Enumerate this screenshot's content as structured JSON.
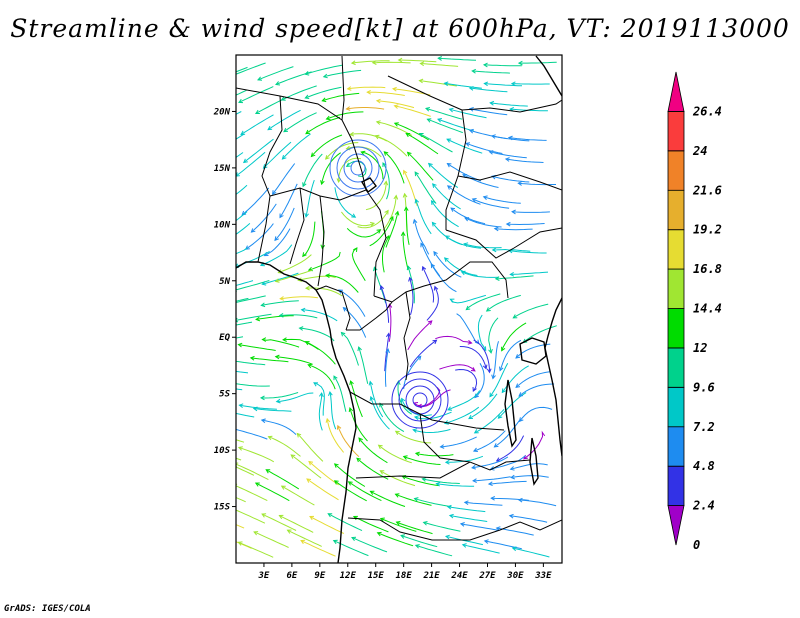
{
  "title": "Streamline & wind speed[kt] at 600hPa, VT: 2019113000",
  "credit": "GrADS: IGES/COLA",
  "map": {
    "lon_range": [
      0,
      35
    ],
    "lat_range": [
      -20,
      25
    ],
    "lat_ticks": [
      {
        "label": "20N",
        "value": 20
      },
      {
        "label": "15N",
        "value": 15
      },
      {
        "label": "10N",
        "value": 10
      },
      {
        "label": "5N",
        "value": 5
      },
      {
        "label": "EQ",
        "value": 0
      },
      {
        "label": "5S",
        "value": -5
      },
      {
        "label": "10S",
        "value": -10
      },
      {
        "label": "15S",
        "value": -15
      }
    ],
    "lon_ticks": [
      {
        "label": "3E",
        "value": 3
      },
      {
        "label": "6E",
        "value": 6
      },
      {
        "label": "9E",
        "value": 9
      },
      {
        "label": "12E",
        "value": 12
      },
      {
        "label": "15E",
        "value": 15
      },
      {
        "label": "18E",
        "value": 18
      },
      {
        "label": "21E",
        "value": 21
      },
      {
        "label": "24E",
        "value": 24
      },
      {
        "label": "27E",
        "value": 27
      },
      {
        "label": "30E",
        "value": 30
      },
      {
        "label": "33E",
        "value": 33
      }
    ]
  },
  "colorbar": {
    "labels": [
      "26.4",
      "24",
      "21.6",
      "19.2",
      "16.8",
      "14.4",
      "12",
      "9.6",
      "7.2",
      "4.8",
      "2.4",
      "0"
    ],
    "colors": [
      "#a000c8",
      "#3232e6",
      "#1e8cf0",
      "#00c8c8",
      "#00d28c",
      "#00dc00",
      "#a0e632",
      "#e6dc32",
      "#e6af2d",
      "#f08228",
      "#fa3c3c",
      "#f00082"
    ]
  },
  "chart_data": {
    "type": "streamline",
    "variable": "wind speed [kt]",
    "level": "600hPa",
    "valid_time": "2019113000",
    "color_scale": [
      0,
      2.4,
      4.8,
      7.2,
      9.6,
      12,
      14.4,
      16.8,
      19.2,
      21.6,
      24,
      26.4
    ]
  }
}
